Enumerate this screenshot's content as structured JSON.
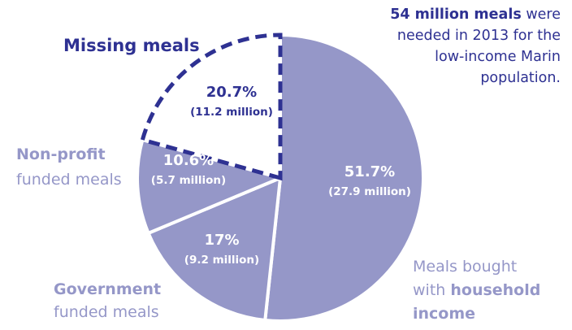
{
  "chart_data": {
    "type": "pie",
    "values": [
      51.7,
      17,
      10.6,
      20.7
    ],
    "value_labels": [
      "51.7%",
      "17%",
      "10.6%",
      "20.7%"
    ],
    "amounts": [
      "(27.9 million)",
      "(9.2 million)",
      "(5.7 million)",
      "(11.2 million)"
    ],
    "colors": [
      "#9597c8",
      "#9597c8",
      "#9597c8",
      "#ffffff"
    ],
    "dashed": [
      false,
      false,
      false,
      true
    ],
    "outline_color": "#2e3192",
    "value_label_colors": [
      "#ffffff",
      "#ffffff",
      "#ffffff",
      "#2e3192"
    ],
    "label_colors": [
      "#9597c8",
      "#9597c8",
      "#9597c8",
      "#2e3192"
    ],
    "labels": [
      [
        [
          {
            "text": "Meals bought"
          }
        ],
        [
          {
            "text": "with "
          },
          {
            "text": "household",
            "bold": true
          }
        ],
        [
          {
            "text": "income",
            "bold": true
          }
        ]
      ],
      [
        [
          {
            "text": "Government",
            "bold": true
          }
        ],
        [
          {
            "text": "funded meals"
          }
        ]
      ],
      [
        [
          {
            "text": "Non-profit",
            "bold": true
          }
        ],
        [
          {
            "text": "funded meals"
          }
        ]
      ],
      [
        [
          {
            "text": "Missing meals",
            "bold": true
          }
        ]
      ]
    ],
    "note_color": "#2e3192",
    "note": [
      [
        {
          "text": "54 million meals",
          "bold": true
        },
        {
          "text": " were"
        }
      ],
      [
        {
          "text": "needed in 2013 for the"
        }
      ],
      [
        {
          "text": "low-income Marin"
        }
      ],
      [
        {
          "text": "population."
        }
      ]
    ]
  }
}
